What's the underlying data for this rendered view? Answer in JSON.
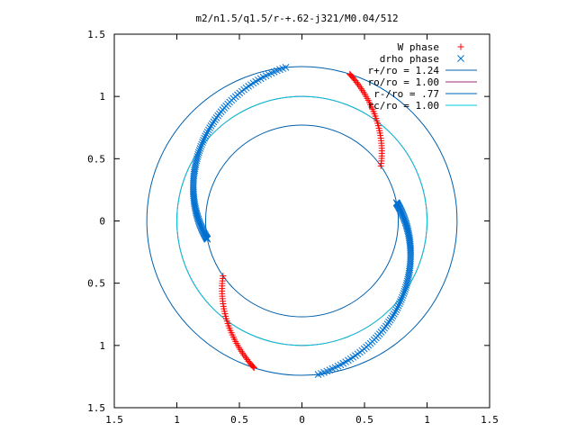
{
  "chart_data": {
    "type": "scatter",
    "title": "m2/n1.5/q1.5/r-+.62-j321/M0.04/512",
    "xlabel": "",
    "ylabel": "",
    "xlim": [
      -1.5,
      1.5
    ],
    "ylim": [
      -1.5,
      1.5
    ],
    "x_ticks": [
      -1.5,
      -1,
      -0.5,
      0,
      0.5,
      1,
      1.5
    ],
    "y_ticks": [
      -1.5,
      -1,
      -0.5,
      0,
      0.5,
      1,
      1.5
    ],
    "x_tick_labels": [
      "1.5",
      "1",
      "0.5",
      "0",
      "0.5",
      "1",
      "1.5"
    ],
    "y_tick_labels": [
      "1.5",
      "1",
      "0.5",
      "0",
      "0.5",
      "1",
      "1.5"
    ],
    "grid": false,
    "legend_position": "top-right",
    "series": [
      {
        "name": "W phase",
        "marker": "plus",
        "color": "#ff0000",
        "arcs": [
          {
            "r_start": 1.24,
            "theta_start_deg": 72,
            "r_end": 0.77,
            "theta_end_deg": 35,
            "points": 45
          },
          {
            "r_start": 1.24,
            "theta_start_deg": 252,
            "r_end": 0.77,
            "theta_end_deg": 215,
            "points": 45
          }
        ]
      },
      {
        "name": "drho phase",
        "marker": "x",
        "color": "#0070d0",
        "arcs": [
          {
            "r_start": 0.77,
            "theta_start_deg": 11,
            "r_end": 1.24,
            "theta_end_deg": -84,
            "points": 110
          },
          {
            "r_start": 0.77,
            "theta_start_deg": 191,
            "r_end": 1.24,
            "theta_end_deg": 96,
            "points": 110
          }
        ]
      },
      {
        "name": "r+/ro = 1.24",
        "type": "circle",
        "radius": 1.24,
        "color": "#0060ad"
      },
      {
        "name": "ro/ro = 1.00",
        "type": "circle",
        "radius": 1.0,
        "color": "#9c2a7a"
      },
      {
        "name": "r-/ro = .77",
        "type": "circle",
        "radius": 0.77,
        "color": "#0060ad"
      },
      {
        "name": "rc/ro = 1.00",
        "type": "circle",
        "radius": 1.0,
        "color": "#00c8d8"
      }
    ]
  }
}
